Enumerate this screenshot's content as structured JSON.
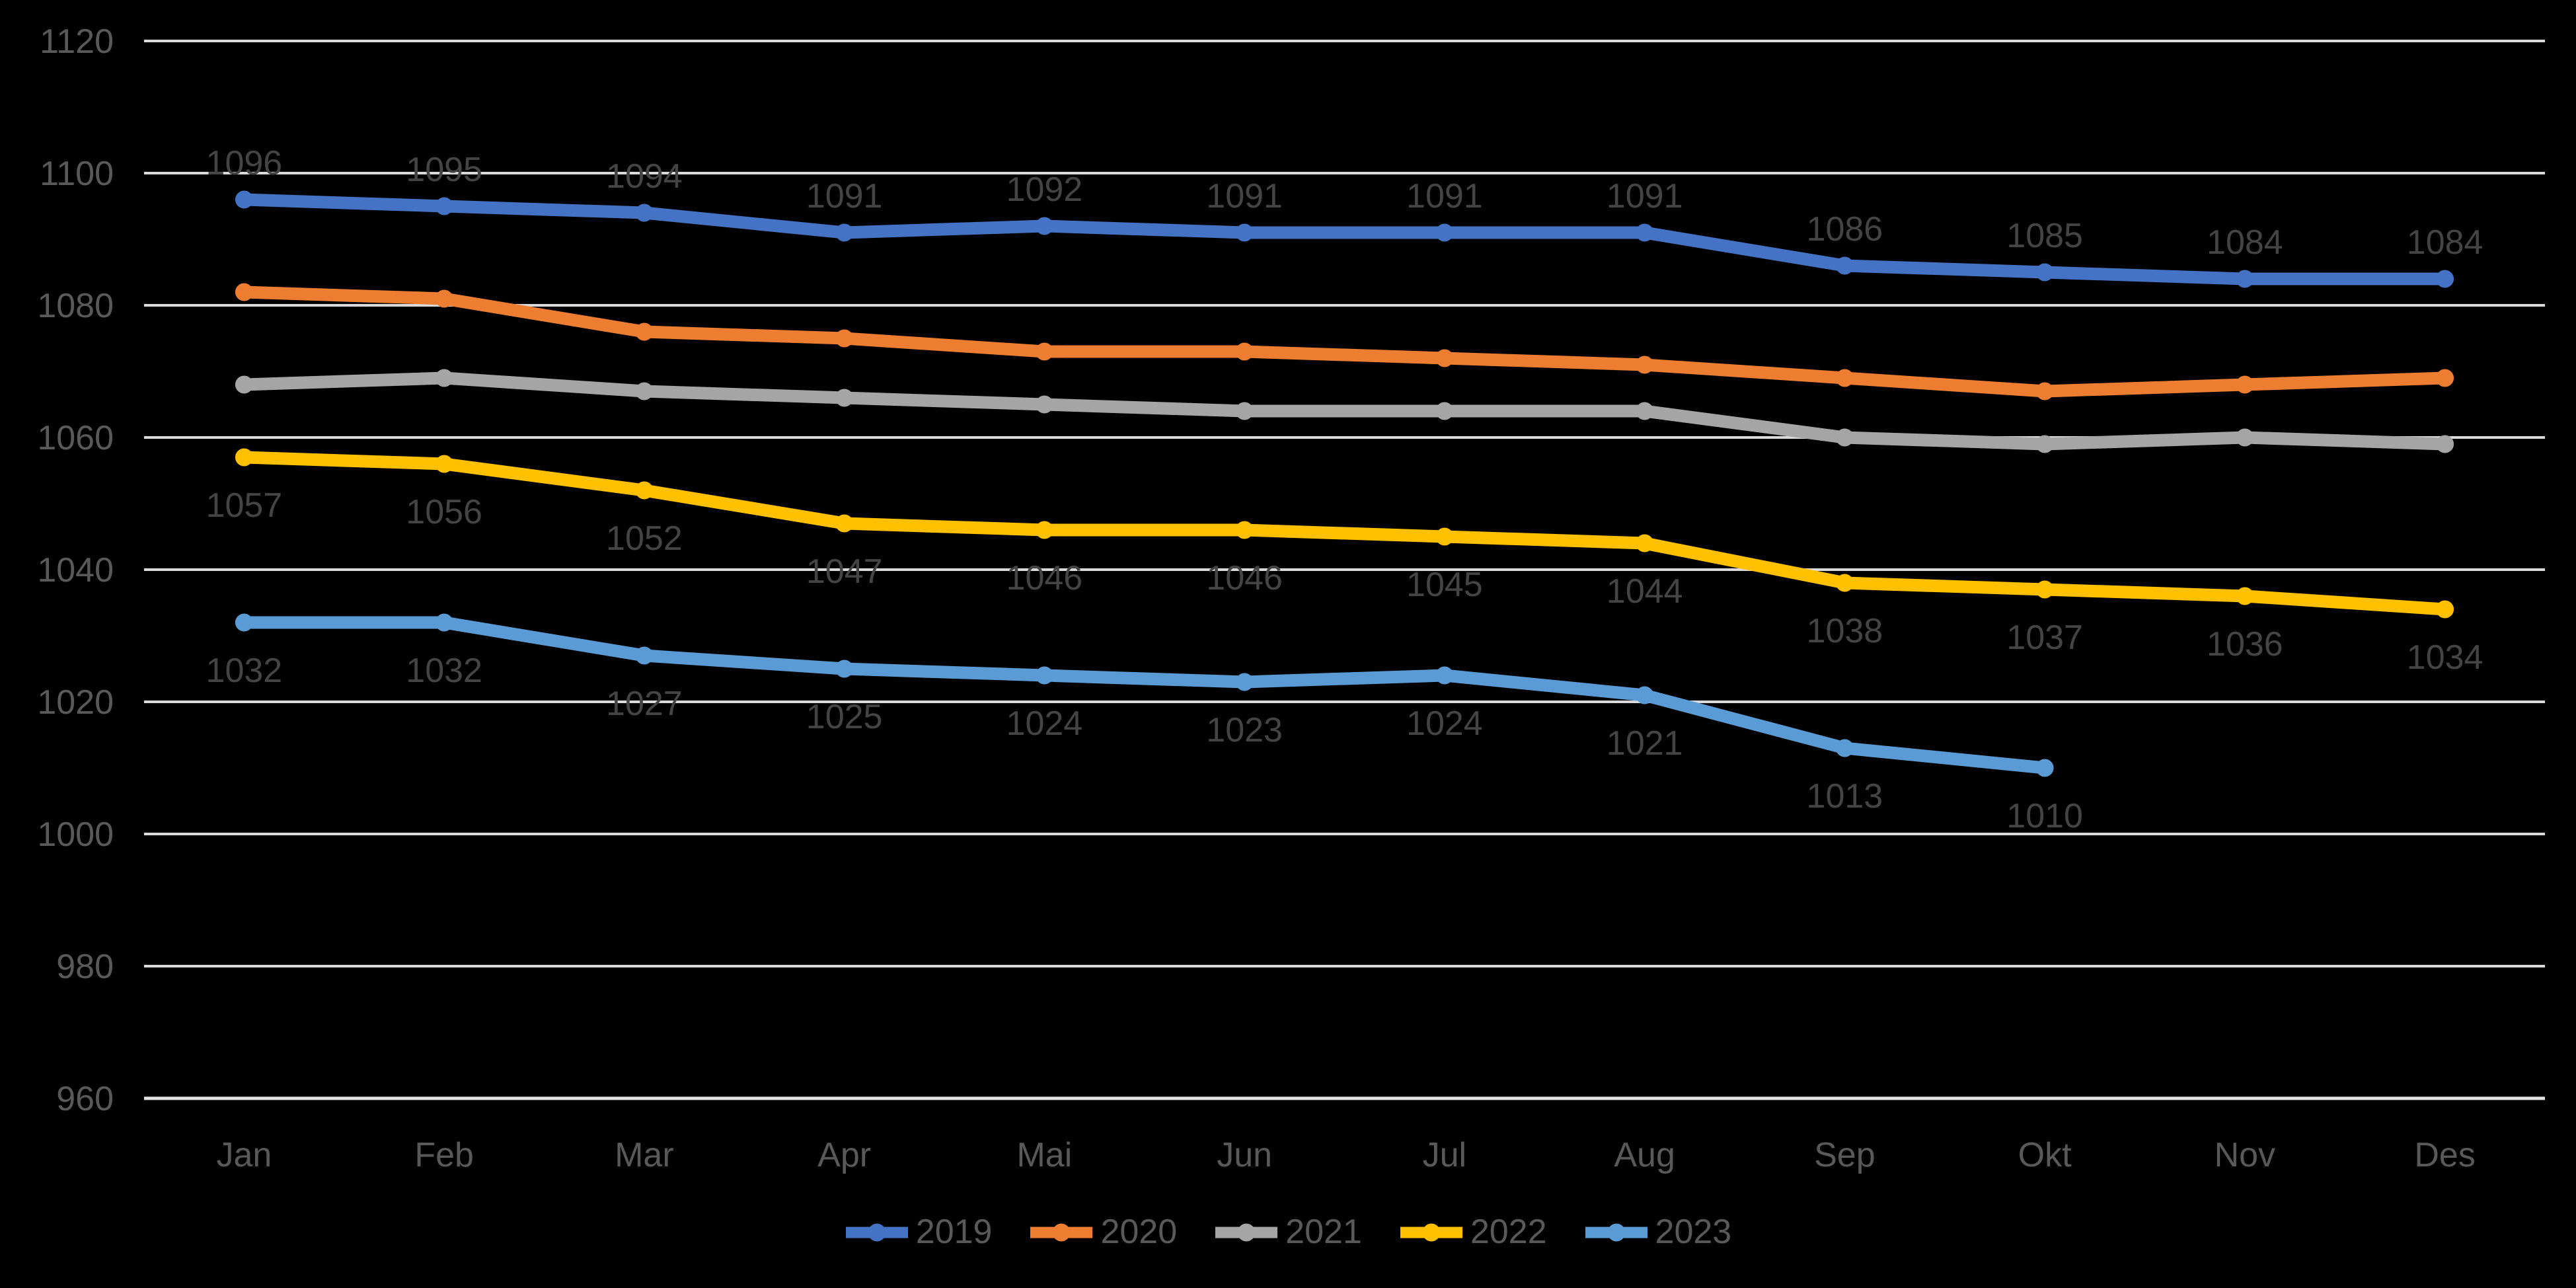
{
  "chart_data": {
    "type": "line",
    "title": "",
    "categories": [
      "Jan",
      "Feb",
      "Mar",
      "Apr",
      "Mai",
      "Jun",
      "Jul",
      "Aug",
      "Sep",
      "Okt",
      "Nov",
      "Des"
    ],
    "y_axis": {
      "min": 960,
      "max": 1120,
      "step": 20,
      "ticks": [
        1120,
        1100,
        1080,
        1060,
        1040,
        1020,
        1000,
        980,
        960
      ]
    },
    "grid": true,
    "legend_position": "bottom",
    "background": "#000000",
    "gridline_color": "#D9D9D9",
    "axis_label_color": "#595959",
    "data_label_color": "#444444",
    "series": [
      {
        "name": "2019",
        "color": "#4472C4",
        "values": [
          1096,
          1095,
          1094,
          1091,
          1092,
          1091,
          1091,
          1091,
          1086,
          1085,
          1084,
          1084
        ],
        "data_labels": [
          "1096",
          "1095",
          "1094",
          "1091",
          "1092",
          "1091",
          "1091",
          "1091",
          "1086",
          "1085",
          "1084",
          "1084"
        ],
        "label_position": "above"
      },
      {
        "name": "2020",
        "color": "#ED7D31",
        "values": [
          1082,
          1081,
          1076,
          1075,
          1073,
          1073,
          1072,
          1071,
          1069,
          1067,
          1068,
          1069
        ],
        "data_labels": null,
        "label_position": "none"
      },
      {
        "name": "2021",
        "color": "#A5A5A5",
        "values": [
          1068,
          1069,
          1067,
          1066,
          1065,
          1064,
          1064,
          1064,
          1060,
          1059,
          1060,
          1059
        ],
        "data_labels": null,
        "label_position": "none"
      },
      {
        "name": "2022",
        "color": "#FFC000",
        "values": [
          1057,
          1056,
          1052,
          1047,
          1046,
          1046,
          1045,
          1044,
          1038,
          1037,
          1036,
          1034
        ],
        "data_labels": [
          "1057",
          "1056",
          "1052",
          "1047",
          "1046",
          "1046",
          "1045",
          "1044",
          "1038",
          "1037",
          "1036",
          "1034"
        ],
        "label_position": "below"
      },
      {
        "name": "2023",
        "color": "#5B9BD5",
        "values": [
          1032,
          1032,
          1027,
          1025,
          1024,
          1023,
          1024,
          1021,
          1013,
          1010,
          null,
          null
        ],
        "data_labels": [
          "1032",
          "1032",
          "1027",
          "1025",
          "1024",
          "1023",
          "1024",
          "1021",
          "1013",
          "1010",
          null,
          null
        ],
        "label_position": "below"
      }
    ],
    "legend": [
      "2019",
      "2020",
      "2021",
      "2022",
      "2023"
    ]
  }
}
